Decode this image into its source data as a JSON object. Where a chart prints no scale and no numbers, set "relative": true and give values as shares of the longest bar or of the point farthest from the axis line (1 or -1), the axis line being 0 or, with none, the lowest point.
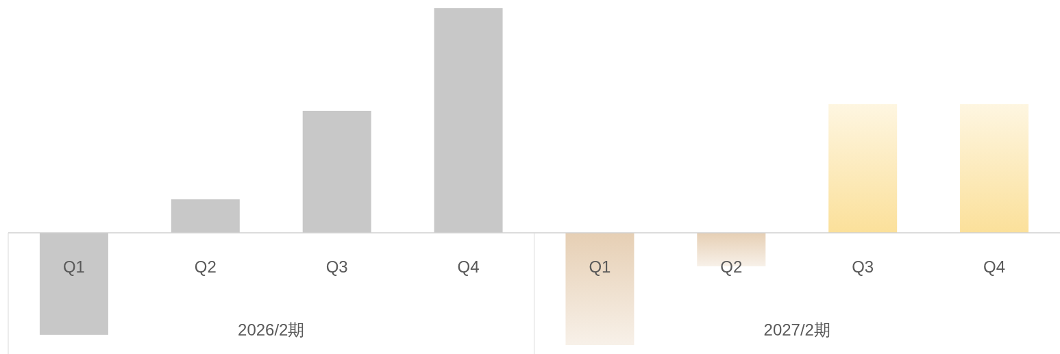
{
  "chart_data": {
    "type": "bar",
    "relative": true,
    "categories": [
      "Q1",
      "Q2",
      "Q3",
      "Q4",
      "Q1",
      "Q2",
      "Q3",
      "Q4"
    ],
    "values": [
      -0.454,
      0.149,
      0.543,
      1,
      -0.5,
      -0.149,
      0.573,
      0.573
    ],
    "colors": [
      "#c8c8c8",
      "#c8c8c8",
      "#c8c8c8",
      "#c8c8c8",
      "#e6cfb4",
      "#e6cfb4",
      "#fbe09a",
      "#fbe09a"
    ],
    "annotations": [
      "2026/2期",
      "2027/2期"
    ]
  }
}
